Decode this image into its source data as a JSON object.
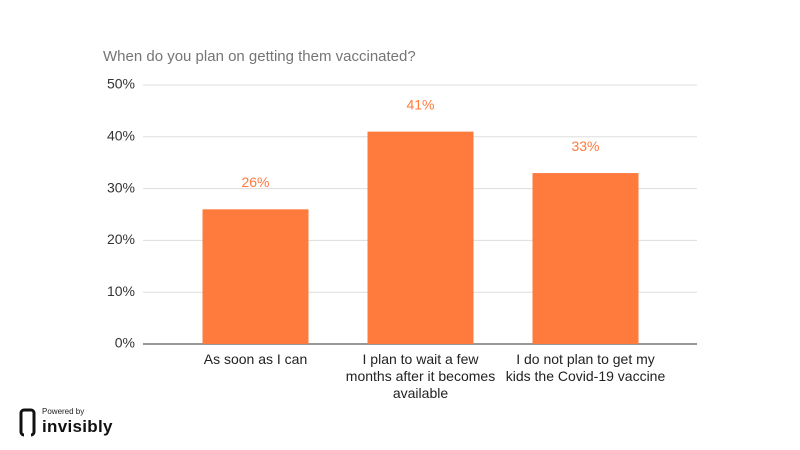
{
  "chart_data": {
    "type": "bar",
    "title": "When do you plan on getting them vaccinated?",
    "categories": [
      "As soon as I can",
      "I plan to wait a few months after it becomes available",
      "I do not plan to get my kids the Covid-19 vaccine"
    ],
    "values": [
      26,
      41,
      33
    ],
    "value_labels": [
      "26%",
      "41%",
      "33%"
    ],
    "color": "#ff7a3d",
    "ylim": [
      0,
      50
    ],
    "yticks": [
      {
        "value": 0,
        "label": "0%"
      },
      {
        "value": 10,
        "label": "10%"
      },
      {
        "value": 20,
        "label": "20%"
      },
      {
        "value": 30,
        "label": "30%"
      },
      {
        "value": 40,
        "label": "40%"
      },
      {
        "value": 50,
        "label": "50%"
      }
    ],
    "grid": true
  },
  "branding": {
    "powered_by": "Powered by",
    "name": "invisibly"
  }
}
